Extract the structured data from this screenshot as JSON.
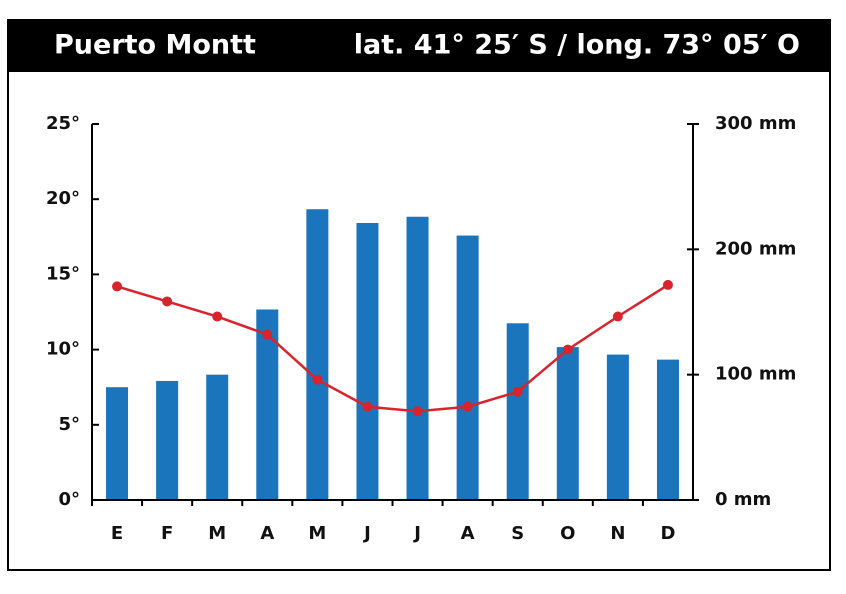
{
  "chart_data": {
    "type": "combo",
    "title": "Puerto Montt",
    "subtitle": "lat. 41° 25′ S / long. 73° 05′ O",
    "categories": [
      "E",
      "F",
      "M",
      "A",
      "M",
      "J",
      "J",
      "A",
      "S",
      "O",
      "N",
      "D"
    ],
    "series": [
      {
        "type": "bar",
        "axis": "y2",
        "color": "#1a75bc",
        "values": [
          90,
          95,
          100,
          152,
          232,
          221,
          226,
          211,
          141,
          122,
          116,
          112
        ]
      },
      {
        "type": "line",
        "color": "#d9232d",
        "values": [
          14.2,
          13.2,
          12.2,
          11.0,
          8.0,
          6.2,
          5.9,
          6.2,
          7.2,
          10.0,
          12.2,
          14.3
        ]
      }
    ],
    "ylim": [
      0,
      25
    ],
    "yticks": [
      {
        "value": 0,
        "label": "0°"
      },
      {
        "value": 5,
        "label": "5°"
      },
      {
        "value": 10,
        "label": "10°"
      },
      {
        "value": 15,
        "label": "15°"
      },
      {
        "value": 20,
        "label": "20°"
      },
      {
        "value": 25,
        "label": "25°"
      }
    ],
    "y2lim": [
      0,
      300
    ],
    "y2ticks": [
      {
        "value": 0,
        "label": "0 mm"
      },
      {
        "value": 100,
        "label": "100 mm"
      },
      {
        "value": 200,
        "label": "200 mm"
      },
      {
        "value": 300,
        "label": "300 mm"
      }
    ]
  }
}
